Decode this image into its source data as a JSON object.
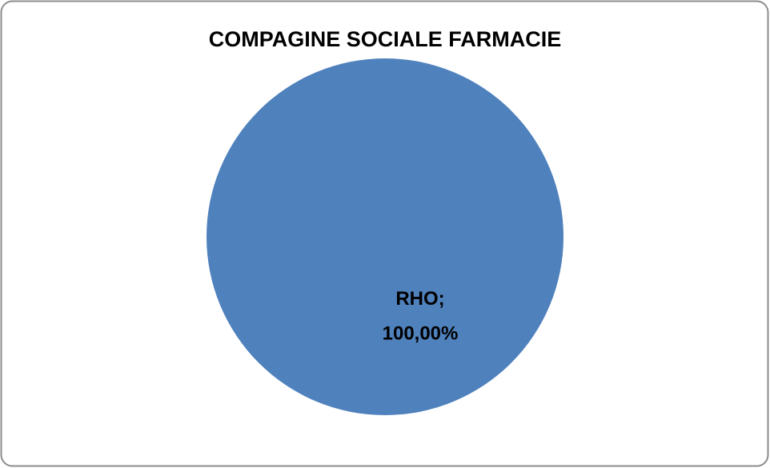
{
  "chart_data": {
    "type": "pie",
    "title": "COMPAGINE SOCIALE FARMACIE",
    "categories": [
      "RHO"
    ],
    "values": [
      100
    ],
    "value_labels": [
      "100,00%"
    ],
    "label_separator": ";",
    "colors": [
      "#4f81bd"
    ]
  }
}
